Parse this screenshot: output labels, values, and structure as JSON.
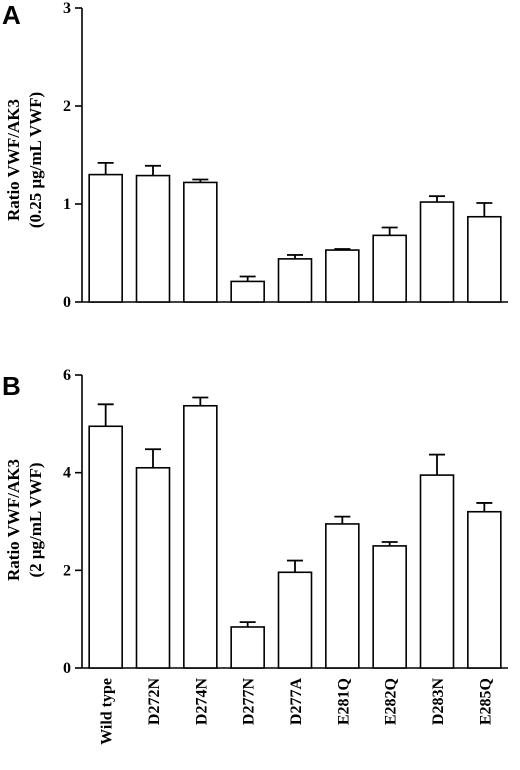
{
  "chart_data": [
    {
      "type": "bar",
      "panel_label": "A",
      "categories": [
        "Wild type",
        "D272N",
        "D274N",
        "D277N",
        "D277A",
        "E281Q",
        "E282Q",
        "D283N",
        "E285Q"
      ],
      "values": [
        1.3,
        1.29,
        1.22,
        0.21,
        0.44,
        0.53,
        0.68,
        1.02,
        0.87
      ],
      "errors": [
        0.12,
        0.1,
        0.03,
        0.05,
        0.04,
        0.01,
        0.08,
        0.06,
        0.14
      ],
      "ylabel_line1": "Ratio VWF/AK3",
      "ylabel_line2": "(0.25 μg/mL VWF)",
      "ylim": [
        0,
        3
      ],
      "yticks": [
        0,
        1,
        2,
        3
      ],
      "grid": false,
      "bar_color": "#ffffff",
      "edge_color": "#000000"
    },
    {
      "type": "bar",
      "panel_label": "B",
      "categories": [
        "Wild type",
        "D272N",
        "D274N",
        "D277N",
        "D277A",
        "E281Q",
        "E282Q",
        "D283N",
        "E285Q"
      ],
      "values": [
        4.95,
        4.1,
        5.37,
        0.84,
        1.96,
        2.95,
        2.5,
        3.95,
        3.2
      ],
      "errors": [
        0.45,
        0.38,
        0.17,
        0.1,
        0.24,
        0.15,
        0.08,
        0.42,
        0.18
      ],
      "ylabel_line1": "Ratio VWF/AK3",
      "ylabel_line2": "(2 μg/mL VWF)",
      "ylim": [
        0,
        6
      ],
      "yticks": [
        0,
        2,
        4,
        6
      ],
      "grid": false,
      "bar_color": "#ffffff",
      "edge_color": "#000000"
    }
  ]
}
